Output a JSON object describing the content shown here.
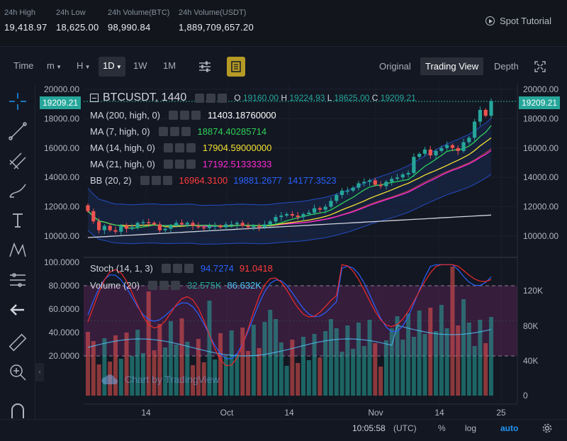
{
  "ticker": {
    "stats": [
      {
        "label": "24h High",
        "value": "19,418.97"
      },
      {
        "label": "24h Low",
        "value": "18,625.00"
      },
      {
        "label": "24h Volume(BTC)",
        "value": "98,990.84"
      },
      {
        "label": "24h Volume(USDT)",
        "value": "1,889,709,657.20"
      }
    ],
    "spot_tutorial": "Spot Tutorial"
  },
  "toolbar": {
    "time": "Time",
    "minutes": "m",
    "hours": "H",
    "day": "1D",
    "week": "1W",
    "month": "1M",
    "views": [
      "Original",
      "Trading View",
      "Depth"
    ]
  },
  "legend": {
    "symbol": "BTCUSDT, 1440",
    "open_label": "O",
    "open": "19160.00",
    "high_label": "H",
    "high": "19224.93",
    "low_label": "L",
    "low": "18625.00",
    "close_label": "C",
    "close": "19209.21",
    "ma200": {
      "name": "MA (200, high, 0)",
      "value": "11403.18760000",
      "color": "#ffffff"
    },
    "ma7": {
      "name": "MA (7, high, 0)",
      "value": "18874.40285714",
      "color": "#30d158"
    },
    "ma14": {
      "name": "MA (14, high, 0)",
      "value": "17904.59000000",
      "color": "#f5e131"
    },
    "ma21": {
      "name": "MA (21, high, 0)",
      "value": "17192.51333333",
      "color": "#ff2bd6"
    },
    "bb": {
      "name": "BB (20, 2)",
      "v1": "16964.3100",
      "v2": "19881.2677",
      "v3": "14177.3523",
      "c1": "#ff3b3b",
      "c2": "#2962ff",
      "c3": "#2962ff"
    },
    "stoch": {
      "name": "Stoch (14, 1, 3)",
      "k": "94.7274",
      "d": "91.0418",
      "ck": "#2962ff",
      "cd": "#ff3b3b"
    },
    "volume": {
      "name": "Volume (20)",
      "v": "32.575K",
      "ma": "86.632K",
      "cv": "#26a69a",
      "cma": "#4fc3f7"
    }
  },
  "price_badge": "19209.21",
  "watermark": "Chart by TradingView",
  "price_axis": [
    "20000.00",
    "18000.00",
    "16000.00",
    "14000.00",
    "12000.00",
    "10000.00"
  ],
  "stoch_axis": [
    "100.0000",
    "80.0000",
    "60.0000",
    "40.0000",
    "20.0000"
  ],
  "volume_axis": [
    "120K",
    "80K",
    "40K",
    "0"
  ],
  "time_axis": [
    "14",
    "Oct",
    "14",
    "Nov",
    "14",
    "25"
  ],
  "status": {
    "time": "10:05:58",
    "tz": "(UTC)",
    "percent": "%",
    "log": "log",
    "auto": "auto"
  },
  "colors": {
    "up": "#26a69a",
    "down": "#ef5350",
    "accent": "#2196f3"
  },
  "chart_data": {
    "type": "candlestick",
    "title": "BTCUSDT, 1440",
    "ylim": [
      9000,
      20200
    ],
    "closes": [
      11700,
      11000,
      10400,
      10700,
      10400,
      10300,
      10700,
      10500,
      10600,
      10900,
      10950,
      10900,
      10800,
      10400,
      10500,
      10700,
      10900,
      10800,
      10900,
      10700,
      10600,
      10550,
      10700,
      10700,
      10600,
      10800,
      10800,
      10900,
      10700,
      10600,
      10700,
      10600,
      10800,
      11000,
      11300,
      11400,
      11500,
      11400,
      11300,
      11500,
      11600,
      11900,
      11800,
      12000,
      12400,
      12800,
      13100,
      13100,
      13300,
      13600,
      13700,
      13800,
      13500,
      13400,
      13700,
      13900,
      14000,
      14200,
      14300,
      15400,
      15600,
      15900,
      15500,
      15800,
      16000,
      16200,
      16000,
      15800,
      16400,
      16700,
      17800,
      18600,
      18200,
      19209
    ]
  }
}
